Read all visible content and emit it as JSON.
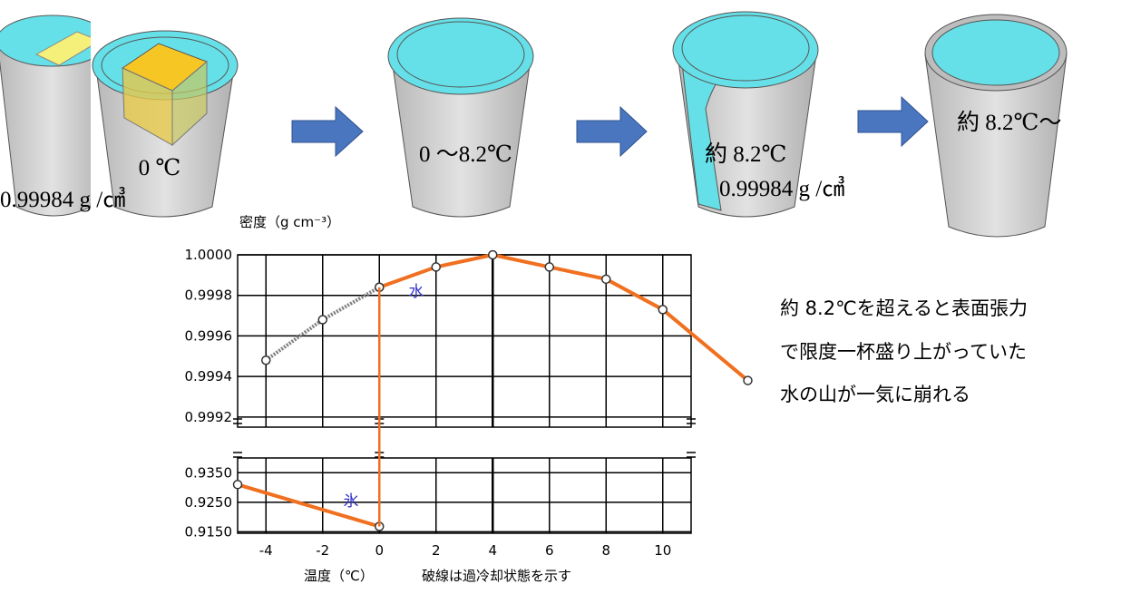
{
  "cups": [
    {
      "labels": []
    },
    {
      "labels": [
        "0 ℃",
        "0.99984 g /㎤"
      ]
    },
    {
      "labels": [
        "0 ～8.2℃"
      ]
    },
    {
      "labels": [
        "約 8.2℃",
        "0.99984 g /㎤"
      ]
    },
    {
      "labels": [
        "約 8.2℃～"
      ]
    }
  ],
  "note": {
    "lines": [
      "約 8.2℃を超えると表面張力",
      "で限度一杯盛り上がっていた",
      "水の山が一気に崩れる"
    ]
  },
  "chart_data": [
    {
      "type": "line",
      "ylabel": "密度（g cm⁻³）",
      "xlim": [
        -5,
        11
      ],
      "ylim": [
        0.99915,
        1.0
      ],
      "yticks": [
        {
          "value": 1.0,
          "label": "1.0000"
        },
        0.9998,
        0.9996,
        0.9994,
        0.9992
      ],
      "grid": true,
      "series": [
        {
          "color": "#7f7f7f",
          "dashed": true,
          "x": [
            -4,
            -2,
            0
          ],
          "values": [
            0.99948,
            0.99968,
            0.99984
          ]
        },
        {
          "color": "#f07020",
          "dashed": false,
          "x": [
            0,
            2,
            4,
            6,
            8,
            10,
            13
          ],
          "values": [
            0.99984,
            0.99994,
            1.0,
            0.99994,
            0.99988,
            0.99973,
            0.99938
          ]
        }
      ],
      "annotation": {
        "text": "水",
        "x": 1.3,
        "y": 0.99982
      }
    },
    {
      "type": "line",
      "xlabel": "温度（℃）",
      "note": "破線は過冷却状態を示す",
      "xlim": [
        -5,
        11
      ],
      "ylim": [
        0.9145,
        0.94
      ],
      "xticks": [
        -4,
        -2,
        0,
        2,
        4,
        6,
        8,
        10
      ],
      "yticks": [
        {
          "value": 0.935,
          "label": "0.9350"
        },
        {
          "value": 0.925,
          "label": "0.9250"
        },
        {
          "value": 0.915,
          "label": "0.9150"
        }
      ],
      "grid": true,
      "series": [
        {
          "color": "#f07020",
          "dashed": false,
          "x": [
            -5,
            0
          ],
          "values": [
            0.931,
            0.9168
          ]
        }
      ],
      "annotation": {
        "text": "氷",
        "x": -1,
        "y": 0.9255
      }
    }
  ]
}
